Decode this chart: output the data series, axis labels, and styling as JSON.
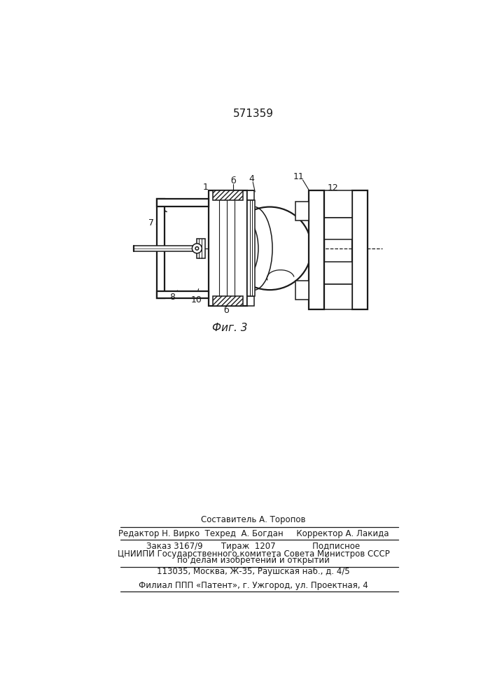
{
  "title": "571359",
  "fig_caption": "Фиг. 3",
  "footer_line1": "Составитель А. Торопов",
  "footer_line2": "Редактор Н. Вирко  Техред  А. Богдан     Корректор А. Лакида",
  "footer_line3": "Заказ 3167/9       Тираж  1207              Подписное",
  "footer_line4": "ЦНИИПИ Государственного комитета Совета Министров СССР",
  "footer_line5": "по делам изобретений и открытий",
  "footer_line6": "113035, Москва, Ж-35, Раушская наб., д. 4/5",
  "footer_line7": "Филиал ППП «Патент», г. Ужгород, ул. Проектная, 4",
  "line_color": "#1a1a1a",
  "bg_color": "#ffffff"
}
